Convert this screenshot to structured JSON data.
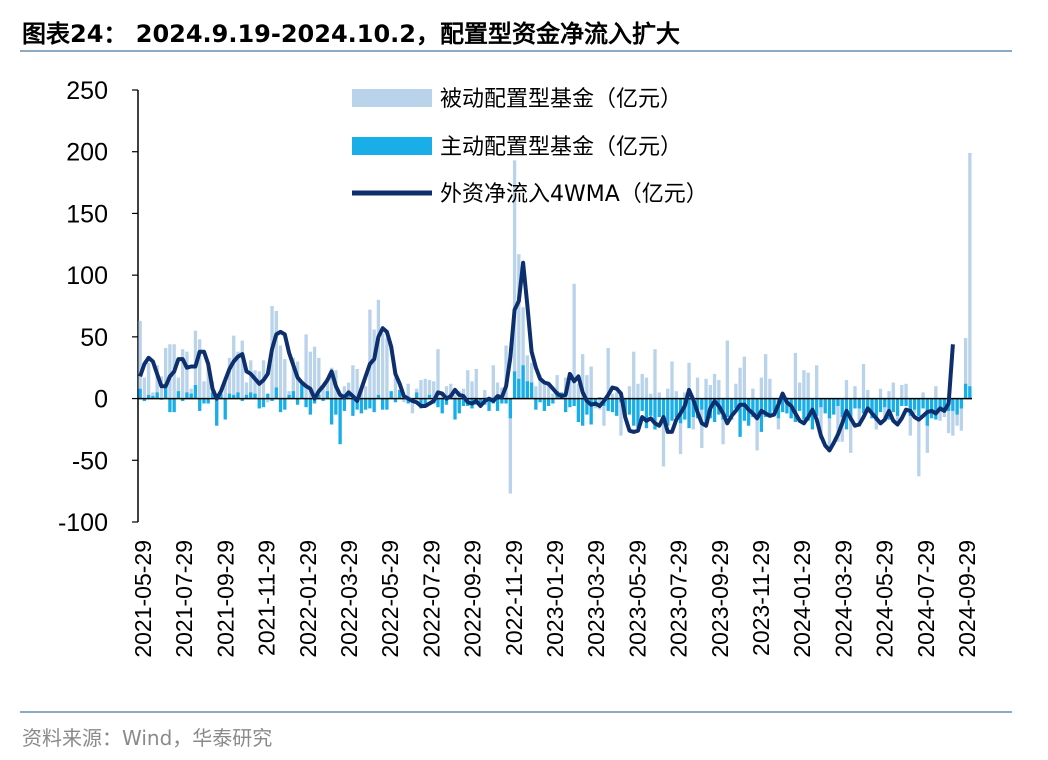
{
  "header": {
    "title": "图表24： 2024.9.19-2024.10.2，配置型资金净流入扩大"
  },
  "footer": {
    "source": "资料来源：Wind，华泰研究"
  },
  "colors": {
    "passive": "#b9d3ea",
    "active": "#19aee8",
    "line": "#0e2f6d",
    "rule": "#8ea9c6"
  },
  "chart_data": {
    "type": "bar",
    "ylim": [
      -100,
      250
    ],
    "yticks": [
      "250",
      "200",
      "150",
      "100",
      "50",
      "0",
      "-50",
      "-100"
    ],
    "ytick_values": [
      250,
      200,
      150,
      100,
      50,
      0,
      -50,
      -100
    ],
    "xtick_labels": [
      "2021-05-29",
      "2021-07-29",
      "2021-09-29",
      "2021-11-29",
      "2022-01-29",
      "2022-03-29",
      "2022-05-29",
      "2022-07-29",
      "2022-09-29",
      "2022-11-29",
      "2023-01-29",
      "2023-03-29",
      "2023-05-29",
      "2023-07-29",
      "2023-09-29",
      "2023-11-29",
      "2024-01-29",
      "2024-03-29",
      "2024-05-29",
      "2024-07-29",
      "2024-09-29"
    ],
    "legend_position": "top-center",
    "series": [
      {
        "name": "被动配置型基金（亿元）",
        "kind": "bar",
        "values": [
          63,
          17,
          29,
          5,
          27,
          18,
          41,
          44,
          44,
          17,
          40,
          38,
          8,
          55,
          48,
          14,
          27,
          14,
          -15,
          2,
          13,
          33,
          51,
          38,
          47,
          13,
          31,
          23,
          22,
          31,
          -3,
          75,
          71,
          43,
          32,
          6,
          33,
          30,
          13,
          52,
          38,
          42,
          33,
          11,
          17,
          25,
          23,
          2,
          10,
          13,
          27,
          24,
          7,
          10,
          72,
          56,
          80,
          53,
          49,
          4,
          17,
          5,
          -3,
          12,
          -12,
          8,
          15,
          16,
          15,
          14,
          40,
          3,
          10,
          12,
          3,
          6,
          8,
          23,
          14,
          24,
          -4,
          7,
          -3,
          27,
          13,
          9,
          43,
          -77,
          193,
          117,
          74,
          35,
          29,
          10,
          19,
          14,
          11,
          4,
          19,
          4,
          17,
          14,
          93,
          12,
          36,
          19,
          26,
          -8,
          -9,
          -22,
          41,
          4,
          5,
          -30,
          -9,
          10,
          38,
          12,
          20,
          17,
          4,
          40,
          5,
          -55,
          8,
          30,
          6,
          -45,
          5,
          29,
          -25,
          17,
          -40,
          16,
          11,
          20,
          15,
          -37,
          47,
          -7,
          12,
          25,
          34,
          -20,
          8,
          -42,
          17,
          36,
          16,
          -12,
          -25,
          3,
          1,
          -16,
          37,
          13,
          23,
          21,
          -8,
          27,
          -33,
          -9,
          -39,
          -7,
          -35,
          -35,
          15,
          -44,
          10,
          -23,
          28,
          7,
          -10,
          -25,
          8,
          -16,
          6,
          13,
          -18,
          11,
          12,
          -30,
          -12,
          -63,
          5,
          -44,
          -9,
          10,
          -18,
          -15,
          -28,
          -30,
          -22,
          -26,
          49,
          199
        ]
      },
      {
        "name": "主动配置型基金（亿元）",
        "kind": "bar",
        "values": [
          8,
          -2,
          3,
          2,
          5,
          -1,
          10,
          -11,
          -11,
          6,
          -2,
          5,
          4,
          11,
          -10,
          -4,
          -4,
          5,
          -22,
          4,
          -17,
          4,
          3,
          5,
          -2,
          3,
          5,
          4,
          -8,
          -7,
          4,
          -2,
          9,
          -11,
          -9,
          3,
          6,
          -5,
          14,
          -7,
          -13,
          -4,
          3,
          -2,
          6,
          -21,
          -13,
          -37,
          -10,
          6,
          -14,
          -9,
          -12,
          -9,
          -8,
          -11,
          3,
          -9,
          -9,
          6,
          -3,
          7,
          3,
          -4,
          -1,
          5,
          -8,
          -5,
          3,
          -4,
          -7,
          -12,
          -5,
          4,
          -17,
          -12,
          -6,
          -6,
          -8,
          -5,
          -6,
          -5,
          -10,
          -4,
          -10,
          -4,
          -4,
          -16,
          22,
          16,
          27,
          14,
          13,
          -9,
          -3,
          -10,
          -6,
          -4,
          6,
          5,
          -11,
          -7,
          -6,
          -19,
          -22,
          -13,
          -21,
          -4,
          1,
          -6,
          -10,
          -11,
          -14,
          -3,
          -14,
          -13,
          -22,
          -24,
          -10,
          -24,
          -14,
          -25,
          -15,
          -19,
          -22,
          -18,
          -15,
          -20,
          -17,
          -24,
          -15,
          -16,
          -9,
          -22,
          -16,
          -19,
          -13,
          -17,
          -15,
          -17,
          -8,
          -31,
          -18,
          -22,
          -15,
          -16,
          -27,
          -15,
          -14,
          -10,
          -16,
          -11,
          -12,
          -16,
          -19,
          -10,
          -17,
          -18,
          -25,
          -14,
          -7,
          -12,
          -16,
          -13,
          -6,
          -15,
          -25,
          -18,
          -8,
          -8,
          -12,
          -10,
          -16,
          -18,
          -11,
          -7,
          -17,
          -11,
          -14,
          -6,
          -6,
          -14,
          -9,
          -14,
          -8,
          -22,
          -16,
          -17,
          -9,
          -10,
          -10,
          -10,
          -13,
          -8,
          12,
          10
        ]
      },
      {
        "name": "外资净流入4WMA（亿元）",
        "kind": "line",
        "values": [
          18,
          28,
          33,
          30,
          20,
          10,
          10,
          18,
          22,
          32,
          32,
          25,
          26,
          26,
          38,
          38,
          28,
          8,
          0,
          6,
          15,
          24,
          30,
          34,
          36,
          22,
          20,
          16,
          12,
          15,
          20,
          40,
          52,
          54,
          52,
          37,
          27,
          17,
          13,
          10,
          8,
          0,
          6,
          10,
          15,
          22,
          10,
          3,
          1,
          5,
          2,
          -2,
          8,
          18,
          28,
          32,
          50,
          57,
          54,
          42,
          20,
          12,
          2,
          0,
          -2,
          -3,
          -6,
          -6,
          -4,
          -2,
          5,
          4,
          0,
          2,
          7,
          3,
          2,
          -3,
          -4,
          -2,
          -6,
          -2,
          0,
          -2,
          2,
          1,
          10,
          33,
          72,
          79,
          110,
          76,
          38,
          25,
          16,
          13,
          12,
          8,
          4,
          2,
          3,
          20,
          14,
          18,
          5,
          -2,
          -5,
          -4,
          -6,
          -2,
          3,
          9,
          8,
          4,
          -15,
          -26,
          -27,
          -26,
          -15,
          -18,
          -16,
          -20,
          -22,
          -15,
          -27,
          -27,
          -17,
          -12,
          -6,
          7,
          -1,
          -11,
          -20,
          -22,
          -8,
          -2,
          -6,
          -12,
          -20,
          -14,
          -10,
          -5,
          -5,
          -9,
          -12,
          -16,
          -10,
          -12,
          -14,
          -13,
          -5,
          4,
          -3,
          -6,
          -12,
          -18,
          -20,
          -15,
          -9,
          -17,
          -30,
          -38,
          -42,
          -36,
          -29,
          -20,
          -10,
          -16,
          -22,
          -21,
          -15,
          -8,
          -12,
          -16,
          -20,
          -17,
          -10,
          -18,
          -21,
          -16,
          -9,
          -10,
          -15,
          -17,
          -14,
          -11,
          -10,
          -12,
          -8,
          -10,
          -4,
          44
        ]
      }
    ]
  }
}
